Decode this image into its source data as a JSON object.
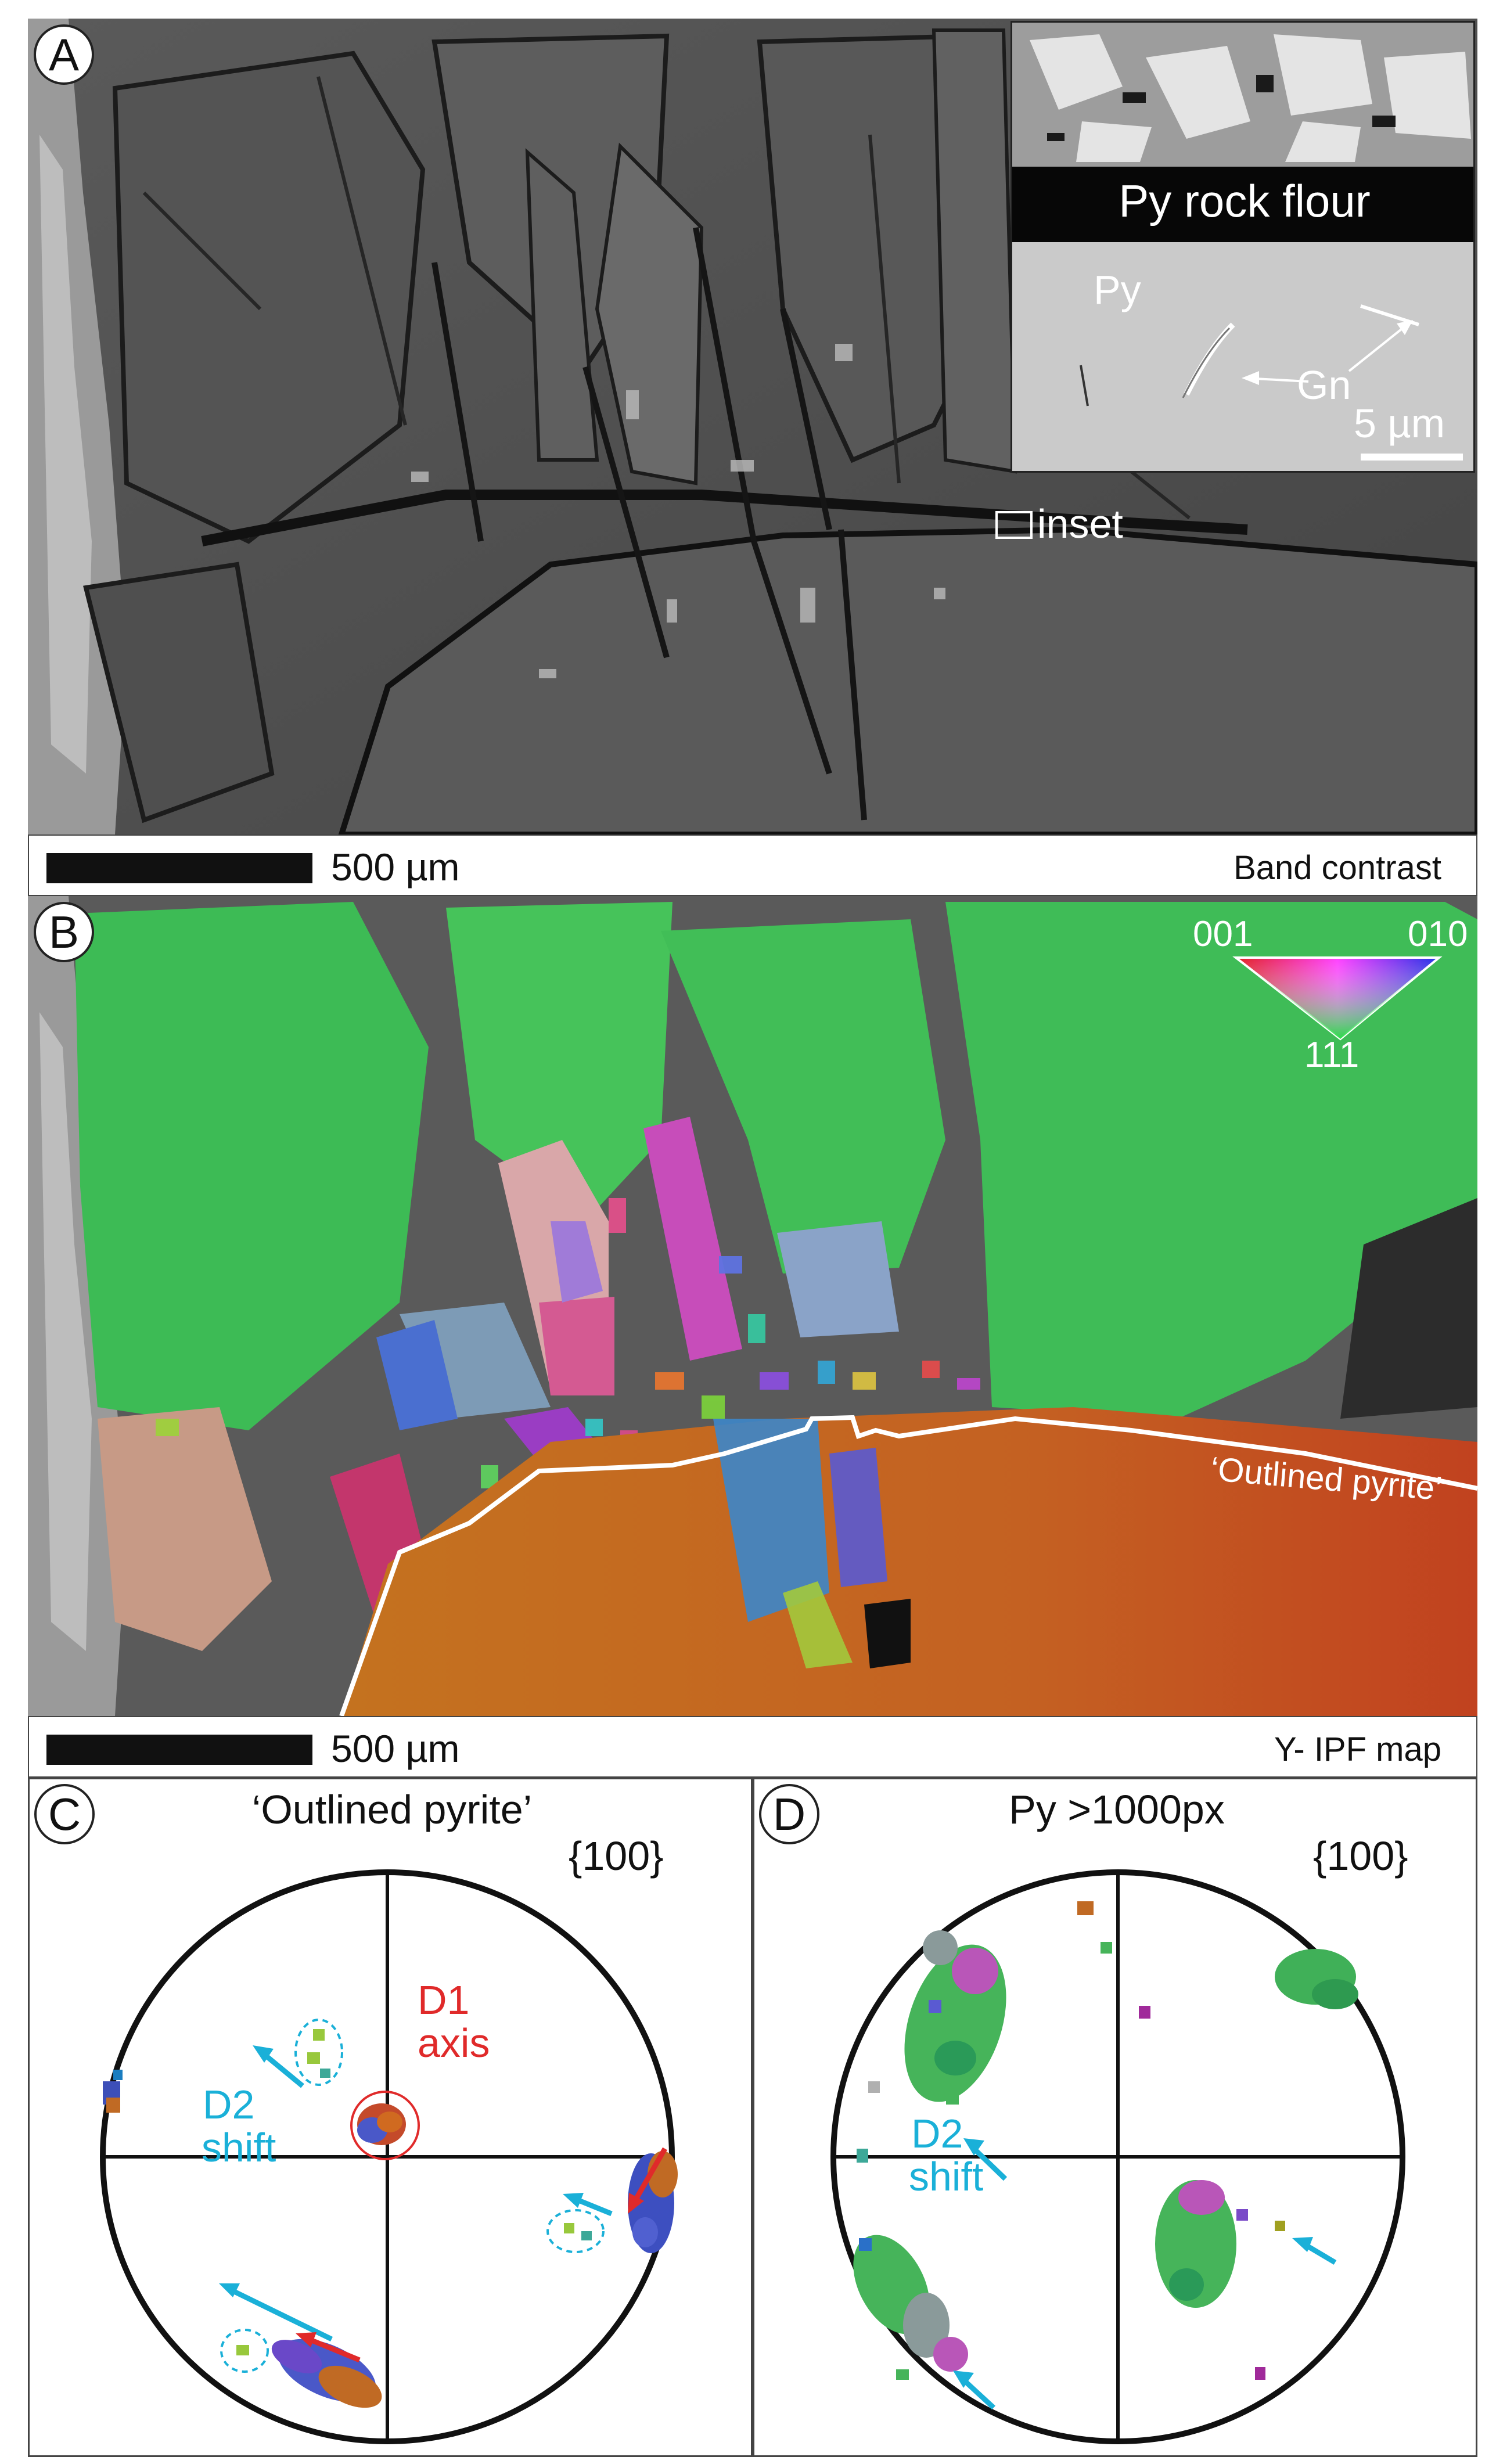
{
  "panel_a": {
    "label": "A",
    "inset_label": "inset",
    "inset": {
      "top_text": "Py rock flour",
      "py_label": "Py",
      "gn_label": "Gn",
      "scale": "5 µm"
    },
    "scale": "500 µm",
    "map_type": "Band contrast"
  },
  "panel_b": {
    "label": "B",
    "legend": {
      "c001": "001",
      "c010": "010",
      "c111": "111"
    },
    "outline_label": "‘Outlined pyrite’",
    "scale": "500 µm",
    "map_type": "Y- IPF map"
  },
  "panel_c": {
    "label": "C",
    "title": "‘Outlined pyrite’",
    "plane": "{100}",
    "d1_line1": "D1",
    "d1_line2": "axis",
    "d2_line1": "D2",
    "d2_line2": "shift"
  },
  "panel_d": {
    "label": "D",
    "title": "Py >1000px",
    "plane": "{100}",
    "d2_line1": "D2",
    "d2_line2": "shift"
  },
  "colors": {
    "d1": "#e02a2a",
    "d2": "#1ab0d8",
    "pyrite_green": "#3dbb55",
    "outlined_orange": "#c0681e"
  }
}
